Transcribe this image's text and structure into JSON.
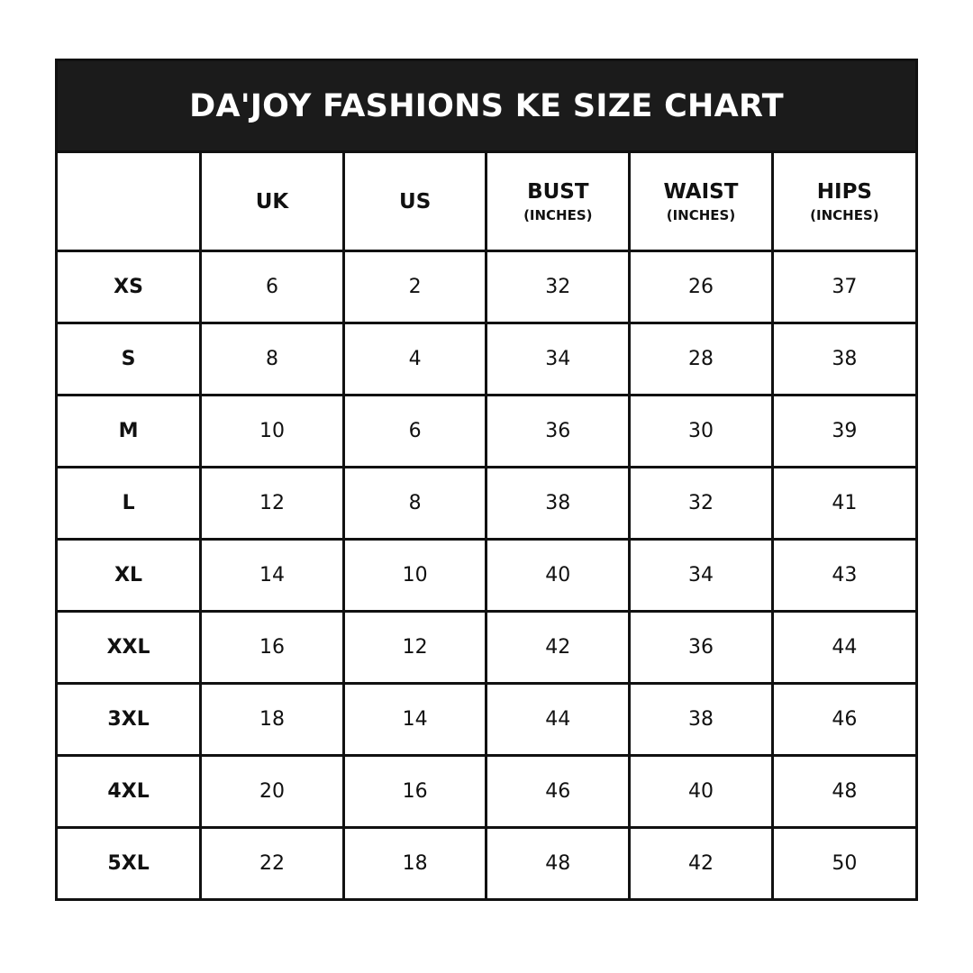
{
  "title": "DA'JOY FASHIONS KE SIZE CHART",
  "columns": [
    {
      "label": "",
      "unit": ""
    },
    {
      "label": "UK",
      "unit": ""
    },
    {
      "label": "US",
      "unit": ""
    },
    {
      "label": "BUST",
      "unit": "(INCHES)"
    },
    {
      "label": "WAIST",
      "unit": "(INCHES)"
    },
    {
      "label": "HIPS",
      "unit": "(INCHES)"
    }
  ],
  "rows": [
    [
      "XS",
      "6",
      "2",
      "32",
      "26",
      "37"
    ],
    [
      "S",
      "8",
      "4",
      "34",
      "28",
      "38"
    ],
    [
      "M",
      "10",
      "6",
      "36",
      "30",
      "39"
    ],
    [
      "L",
      "12",
      "8",
      "38",
      "32",
      "41"
    ],
    [
      "XL",
      "14",
      "10",
      "40",
      "34",
      "43"
    ],
    [
      "XXL",
      "16",
      "12",
      "42",
      "36",
      "44"
    ],
    [
      "3XL",
      "18",
      "14",
      "44",
      "38",
      "46"
    ],
    [
      "4XL",
      "20",
      "16",
      "46",
      "40",
      "48"
    ],
    [
      "5XL",
      "22",
      "18",
      "48",
      "42",
      "50"
    ]
  ]
}
